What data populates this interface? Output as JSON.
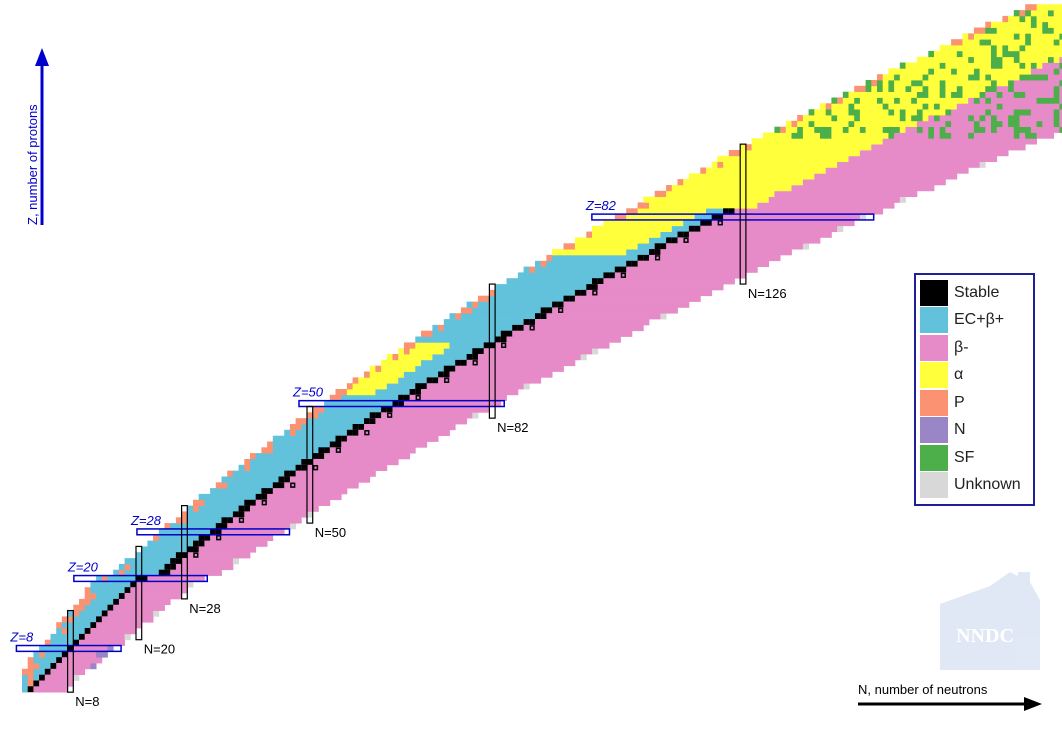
{
  "axes": {
    "z_label": "Z, number of protons",
    "n_label": "N, number of neutrons",
    "axis_color": "#0000cc"
  },
  "magic": {
    "z_lines": [
      {
        "label": "Z=8",
        "value": 8
      },
      {
        "label": "Z=20",
        "value": 20
      },
      {
        "label": "Z=28",
        "value": 28
      },
      {
        "label": "Z=50",
        "value": 50
      },
      {
        "label": "Z=82",
        "value": 82
      }
    ],
    "n_lines": [
      {
        "label": "N=8",
        "value": 8
      },
      {
        "label": "N=20",
        "value": 20
      },
      {
        "label": "N=28",
        "value": 28
      },
      {
        "label": "N=50",
        "value": 50
      },
      {
        "label": "N=82",
        "value": 82
      },
      {
        "label": "N=126",
        "value": 126
      }
    ]
  },
  "legend": {
    "items": [
      {
        "label": "Stable",
        "color": "#000000"
      },
      {
        "label": "EC+β+",
        "color": "#62c2dc"
      },
      {
        "label": "β-",
        "color": "#e68ac8"
      },
      {
        "label": "α",
        "color": "#ffff3c"
      },
      {
        "label": "P",
        "color": "#fb9272"
      },
      {
        "label": "N",
        "color": "#9a86c6"
      },
      {
        "label": "SF",
        "color": "#4daf4a"
      },
      {
        "label": "Unknown",
        "color": "#d8d8d8"
      }
    ]
  },
  "logo": {
    "text": "NNDC"
  }
}
